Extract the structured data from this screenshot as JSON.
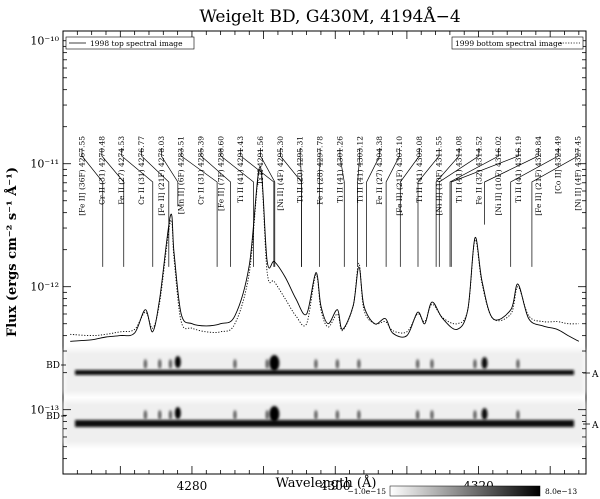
{
  "chart_data": {
    "type": "line",
    "title": "Weigelt BD, G430M, 4194Å−4",
    "xlabel": "Wavelength (Å)",
    "ylabel": "Flux (ergs cm⁻² s⁻¹ Å⁻¹)",
    "xlim": [
      4262,
      4335
    ],
    "ylim": [
      3e-14,
      1.2e-10
    ],
    "yscale": "log",
    "x_ticks": [
      4280,
      4300,
      4320
    ],
    "y_ticks": [
      {
        "value": 1e-10,
        "label": "10⁻¹⁰"
      },
      {
        "value": 1e-11,
        "label": "10⁻¹¹"
      },
      {
        "value": 1e-12,
        "label": "10⁻¹²"
      },
      {
        "value": 1e-13,
        "label": "10⁻¹³"
      }
    ],
    "legend": {
      "top_left": "1998 top spectral image",
      "top_right": "1999 bottom spectral image"
    },
    "series": [
      {
        "name": "1998 top spectral image",
        "style": "solid",
        "x": [
          4263,
          4266,
          4268,
          4270,
          4272,
          4273.5,
          4274.5,
          4275.5,
          4277,
          4277.5,
          4278.5,
          4280,
          4282,
          4284,
          4286,
          4288,
          4289.5,
          4290.5,
          4291.5,
          4293,
          4294.5,
          4296,
          4297.3,
          4298,
          4299,
          4300.3,
          4301,
          4302.5,
          4303.3,
          4304,
          4305.5,
          4307,
          4308,
          4310,
          4311.5,
          4312.5,
          4313.5,
          4315,
          4317,
          4318.5,
          4319.5,
          4320.5,
          4322,
          4324.5,
          4325.5,
          4327,
          4329,
          4331,
          4332.5,
          4334
        ],
        "y": [
          3.6e-13,
          3.7e-13,
          3.9e-13,
          4e-13,
          4.2e-13,
          6.5e-13,
          4.3e-13,
          8e-13,
          3.8e-12,
          1.9e-12,
          6e-13,
          5e-13,
          4.8e-13,
          5e-13,
          5.8e-13,
          1.5e-12,
          9.5e-12,
          1.6e-12,
          1.6e-12,
          1.2e-12,
          8e-13,
          6e-13,
          1.3e-12,
          7e-13,
          5e-13,
          6.5e-13,
          4.5e-13,
          7e-13,
          1.45e-12,
          7e-13,
          5e-13,
          5.5e-13,
          4.2e-13,
          4e-13,
          6.2e-13,
          5e-13,
          7.5e-13,
          5.5e-13,
          4.5e-13,
          6.5e-13,
          2.5e-12,
          1.1e-12,
          5.5e-13,
          6.5e-13,
          1.05e-12,
          5.5e-13,
          4.8e-13,
          4.5e-13,
          4e-13,
          3.6e-13
        ]
      },
      {
        "name": "1999 bottom spectral image",
        "style": "dotted",
        "x": [
          4263,
          4266,
          4268,
          4270,
          4272,
          4273.5,
          4274.5,
          4275.5,
          4277,
          4277.5,
          4278.5,
          4280,
          4282,
          4284,
          4286,
          4288,
          4289.5,
          4290.5,
          4291.5,
          4293,
          4294.5,
          4296,
          4297.3,
          4298,
          4299,
          4300.3,
          4301,
          4302.5,
          4303.3,
          4304,
          4305.5,
          4307,
          4308,
          4310,
          4311.5,
          4312.5,
          4313.5,
          4315,
          4317,
          4318.5,
          4319.5,
          4320.5,
          4322,
          4324.5,
          4325.5,
          4327,
          4329,
          4331,
          4332.5,
          4334
        ],
        "y": [
          4.1e-13,
          4e-13,
          4.1e-13,
          4.3e-13,
          4.5e-13,
          6.2e-13,
          4.6e-13,
          7.5e-13,
          3.4e-12,
          1.7e-12,
          5.2e-13,
          4.6e-13,
          4.3e-13,
          4.3e-13,
          5e-13,
          1.3e-12,
          9e-12,
          1.3e-12,
          1.1e-12,
          8e-13,
          5.8e-13,
          5e-13,
          1.25e-12,
          6.5e-13,
          4.7e-13,
          6e-13,
          4.4e-13,
          7e-13,
          1.55e-12,
          6.5e-13,
          5e-13,
          5.2e-13,
          4.4e-13,
          4.3e-13,
          6e-13,
          5.2e-13,
          7.2e-13,
          5.6e-13,
          5e-13,
          6.5e-13,
          2.4e-12,
          1.05e-12,
          5.5e-13,
          6e-13,
          1e-12,
          5.8e-13,
          5.2e-13,
          5.2e-13,
          5e-13,
          5e-13
        ]
      }
    ],
    "line_ids": [
      {
        "label": "[Fe II]  (36F) 4267.55",
        "wl": 4267.55,
        "tip": 1.45e-12
      },
      {
        "label": "Cr II  (31) 4270.48",
        "wl": 4270.48,
        "tip": 1.45e-12
      },
      {
        "label": "Fe II  (27) 4274.53",
        "wl": 4274.53,
        "tip": 1.45e-12
      },
      {
        "label": "Cr II  (31) 4276.77",
        "wl": 4276.77,
        "tip": 1.45e-12
      },
      {
        "label": "[Fe II]  (21F) 4278.03",
        "wl": 4278.03,
        "tip": 4.5e-12
      },
      {
        "label": "[Mn II]  (6F) 4283.51",
        "wl": 4283.51,
        "tip": 1.45e-12
      },
      {
        "label": "Cr II  (31) 4285.39",
        "wl": 4285.39,
        "tip": 1.45e-12
      },
      {
        "label": "[Fe II]  (7F) 4288.60",
        "wl": 4288.6,
        "tip": 1.45e-12
      },
      {
        "label": "Ti II  (41) 4291.43",
        "wl": 4291.43,
        "tip": 1.45e-12
      },
      {
        "label": "Ti II 4291.56",
        "wl": 4291.56,
        "tip": 1.45e-12
      },
      {
        "label": "[Ni II]  (4F) 4295.30",
        "wl": 4295.3,
        "tip": 1.45e-12
      },
      {
        "label": "Ti II  (20) 4295.31",
        "wl": 4295.31,
        "tip": 1.45e-12
      },
      {
        "label": "Fe II  (28) 4297.78",
        "wl": 4297.78,
        "tip": 1.45e-12
      },
      {
        "label": "Ti II  (41) 4301.26",
        "wl": 4301.26,
        "tip": 1.45e-12
      },
      {
        "label": "Ti II  (41) 4303.12",
        "wl": 4303.12,
        "tip": 1.45e-12
      },
      {
        "label": "Fe II  (27) 4304.38",
        "wl": 4304.38,
        "tip": 1.45e-12
      },
      {
        "label": "[Fe II]  (21F) 4307.10",
        "wl": 4307.1,
        "tip": 1.45e-12
      },
      {
        "label": "Ti II  (41) 4309.08",
        "wl": 4309.08,
        "tip": 1.45e-12
      },
      {
        "label": "[Ni II]  (10F) 4311.55",
        "wl": 4311.55,
        "tip": 1.45e-12
      },
      {
        "label": "Ti II  (41) 4314.08",
        "wl": 4314.08,
        "tip": 1.45e-12
      },
      {
        "label": "Fe II  (32) 4314.52",
        "wl": 4314.52,
        "tip": 1.45e-12
      },
      {
        "label": "[Ni II]  (10F) 4316.02",
        "wl": 4316.02,
        "tip": 1.45e-12
      },
      {
        "label": "Ti II  (41) 4316.19",
        "wl": 4316.19,
        "tip": 1.45e-12
      },
      {
        "label": "[Fe II]  (21F) 4320.84",
        "wl": 4320.84,
        "tip": 3.2e-12
      },
      {
        "label": "[Co II]  4324.49",
        "wl": 4324.49,
        "tip": 1.45e-12
      },
      {
        "label": "[Ni II]  (4F) 4327.45",
        "wl": 4327.45,
        "tip": 1.45e-12
      }
    ],
    "image_strips": [
      {
        "left_label": "BD",
        "right_label": "A"
      },
      {
        "left_label": "BD",
        "right_label": "A"
      }
    ],
    "colorbar": {
      "min_label": "−1.0e−15",
      "max_label": "8.0e−13"
    }
  }
}
